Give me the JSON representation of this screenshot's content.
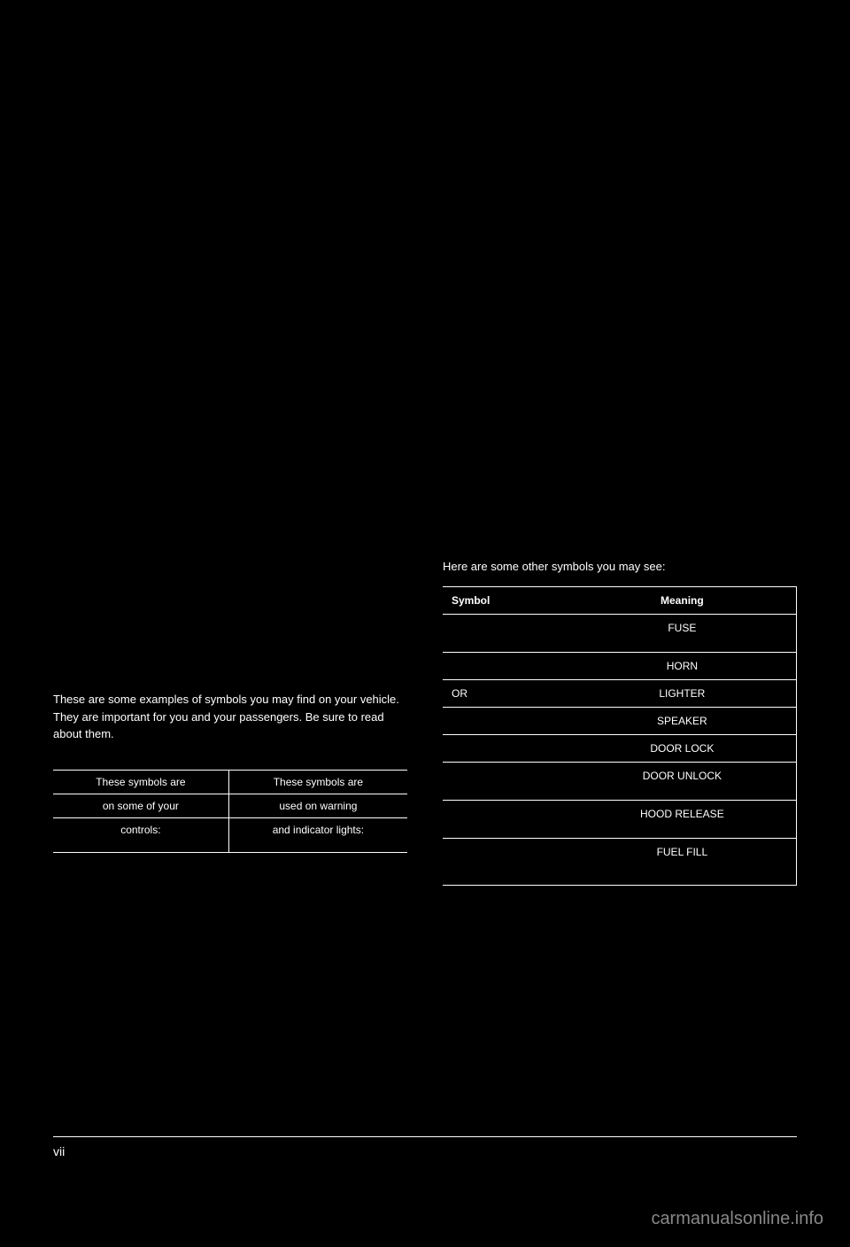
{
  "left": {
    "intro": "These are some examples of symbols you may find on your vehicle. They are important for you and your passengers. Be sure to read about them.",
    "table": {
      "rows": [
        [
          "These symbols are",
          "These symbols are"
        ],
        [
          "on some of your",
          "used on warning"
        ],
        [
          "controls:",
          "and indicator lights:"
        ]
      ]
    }
  },
  "right": {
    "intro": "Here are some other symbols you may see:",
    "table": {
      "headers": [
        "Symbol",
        "Meaning"
      ],
      "rows": [
        {
          "col1": "",
          "col2": "FUSE",
          "tall": true
        },
        {
          "col1": "",
          "col2": "HORN",
          "tall": false
        },
        {
          "col1": "OR",
          "col2": "LIGHTER",
          "tall": false
        },
        {
          "col1": "",
          "col2": "SPEAKER",
          "tall": false
        },
        {
          "col1": "",
          "col2": "DOOR LOCK",
          "tall": false
        },
        {
          "col1": "",
          "col2": "DOOR UNLOCK",
          "tall": true
        },
        {
          "col1": "",
          "col2": "HOOD RELEASE",
          "tall": true
        },
        {
          "col1": "",
          "col2": "FUEL FILL",
          "tall": true
        }
      ]
    }
  },
  "footer": {
    "left": "vii",
    "right": ""
  },
  "watermark": "carmanualsonline.info"
}
